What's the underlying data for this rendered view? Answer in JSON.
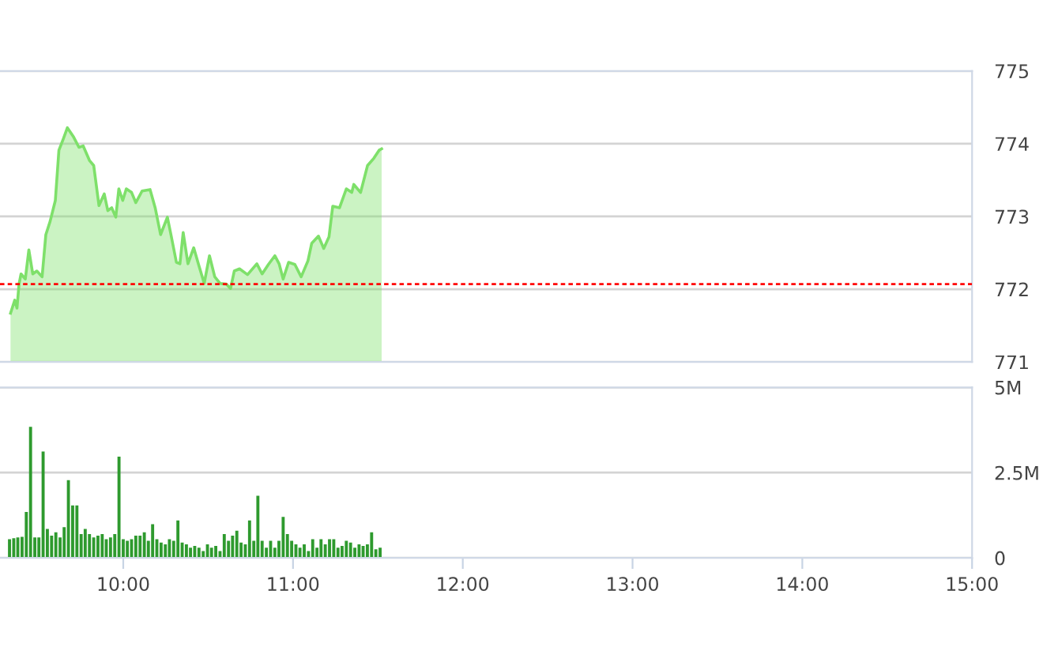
{
  "chart_data": [
    {
      "type": "area",
      "xlim": [
        9.274,
        15
      ],
      "ylim": [
        771,
        775
      ],
      "yticks": [
        771,
        772,
        773,
        774,
        775
      ],
      "grid": "y",
      "tick_labels": "y",
      "marker": "none",
      "line_style": "solid",
      "ref_lines": [
        {
          "axis": "y",
          "value": 772.07,
          "color": "#ff0000",
          "line_style": "dashed"
        }
      ],
      "series": [
        {
          "color": "#7ee06a",
          "x": [
            9.336,
            9.361,
            9.374,
            9.386,
            9.398,
            9.423,
            9.444,
            9.467,
            9.491,
            9.522,
            9.544,
            9.569,
            9.6,
            9.621,
            9.646,
            9.671,
            9.708,
            9.739,
            9.764,
            9.801,
            9.826,
            9.857,
            9.888,
            9.909,
            9.932,
            9.956,
            9.974,
            9.997,
            10.018,
            10.049,
            10.074,
            10.111,
            10.158,
            10.188,
            10.22,
            10.26,
            10.281,
            10.313,
            10.334,
            10.353,
            10.381,
            10.415,
            10.446,
            10.477,
            10.508,
            10.539,
            10.57,
            10.607,
            10.632,
            10.654,
            10.685,
            10.732,
            10.787,
            10.818,
            10.855,
            10.893,
            10.918,
            10.942,
            10.974,
            11.011,
            11.048,
            11.088,
            11.11,
            11.15,
            11.181,
            11.212,
            11.234,
            11.274,
            11.314,
            11.346,
            11.358,
            11.398,
            11.439,
            11.476,
            11.507,
            11.522
          ],
          "values": [
            771.67,
            771.85,
            771.74,
            772.07,
            772.21,
            772.14,
            772.54,
            772.21,
            772.25,
            772.17,
            772.75,
            772.93,
            773.22,
            773.91,
            774.06,
            774.22,
            774.09,
            773.95,
            773.97,
            773.77,
            773.7,
            773.15,
            773.31,
            773.08,
            773.12,
            772.99,
            773.38,
            773.22,
            773.38,
            773.33,
            773.19,
            773.35,
            773.37,
            773.12,
            772.75,
            772.99,
            772.75,
            772.37,
            772.35,
            772.78,
            772.35,
            772.57,
            772.32,
            772.08,
            772.46,
            772.17,
            772.08,
            772.07,
            772.01,
            772.25,
            772.28,
            772.2,
            772.35,
            772.21,
            772.34,
            772.46,
            772.35,
            772.14,
            772.37,
            772.34,
            772.17,
            772.39,
            772.63,
            772.73,
            772.56,
            772.72,
            773.14,
            773.12,
            773.38,
            773.33,
            773.44,
            773.33,
            773.7,
            773.8,
            773.91,
            773.93
          ]
        }
      ]
    },
    {
      "type": "bar",
      "xlim": [
        9.274,
        15
      ],
      "ylim": [
        0,
        5
      ],
      "yticks": [
        {
          "value": 0,
          "label": "0"
        },
        {
          "value": 2.5,
          "label": "2.5M"
        },
        {
          "value": 5,
          "label": "5M"
        }
      ],
      "xticks": [
        {
          "value": 10,
          "label": "10:00"
        },
        {
          "value": 11,
          "label": "11:00"
        },
        {
          "value": 12,
          "label": "12:00"
        },
        {
          "value": 13,
          "label": "13:00"
        },
        {
          "value": 14,
          "label": "14:00"
        },
        {
          "value": 15,
          "label": "15:00"
        }
      ],
      "grid": "y",
      "series": [
        {
          "color": "#2e9a2e",
          "x": [
            9.33,
            9.355,
            9.379,
            9.404,
            9.429,
            9.454,
            9.479,
            9.503,
            9.528,
            9.553,
            9.578,
            9.603,
            9.628,
            9.652,
            9.677,
            9.702,
            9.727,
            9.752,
            9.776,
            9.801,
            9.826,
            9.851,
            9.876,
            9.9,
            9.925,
            9.95,
            9.975,
            10.0,
            10.024,
            10.049,
            10.074,
            10.099,
            10.124,
            10.148,
            10.173,
            10.198,
            10.223,
            10.248,
            10.272,
            10.297,
            10.322,
            10.347,
            10.372,
            10.396,
            10.421,
            10.446,
            10.471,
            10.496,
            10.52,
            10.545,
            10.57,
            10.595,
            10.62,
            10.644,
            10.669,
            10.694,
            10.719,
            10.744,
            10.769,
            10.793,
            10.818,
            10.843,
            10.868,
            10.893,
            10.917,
            10.942,
            10.967,
            10.992,
            11.017,
            11.041,
            11.066,
            11.091,
            11.116,
            11.141,
            11.165,
            11.19,
            11.215,
            11.24,
            11.265,
            11.289,
            11.314,
            11.339,
            11.364,
            11.389,
            11.413,
            11.438,
            11.463,
            11.488,
            11.513
          ],
          "values": [
            0.55,
            0.58,
            0.6,
            0.62,
            1.35,
            3.84,
            0.6,
            0.6,
            3.12,
            0.85,
            0.65,
            0.75,
            0.6,
            0.9,
            2.28,
            1.54,
            1.54,
            0.7,
            0.85,
            0.7,
            0.6,
            0.65,
            0.7,
            0.55,
            0.6,
            0.7,
            2.97,
            0.55,
            0.5,
            0.55,
            0.65,
            0.65,
            0.75,
            0.5,
            0.99,
            0.55,
            0.45,
            0.4,
            0.55,
            0.5,
            1.1,
            0.45,
            0.4,
            0.3,
            0.35,
            0.3,
            0.2,
            0.4,
            0.3,
            0.35,
            0.2,
            0.7,
            0.5,
            0.65,
            0.8,
            0.45,
            0.4,
            1.1,
            0.5,
            1.82,
            0.5,
            0.3,
            0.5,
            0.3,
            0.5,
            1.2,
            0.7,
            0.5,
            0.4,
            0.3,
            0.4,
            0.2,
            0.55,
            0.3,
            0.55,
            0.4,
            0.55,
            0.55,
            0.3,
            0.35,
            0.5,
            0.45,
            0.3,
            0.4,
            0.35,
            0.4,
            0.75,
            0.25,
            0.3
          ]
        }
      ]
    }
  ]
}
